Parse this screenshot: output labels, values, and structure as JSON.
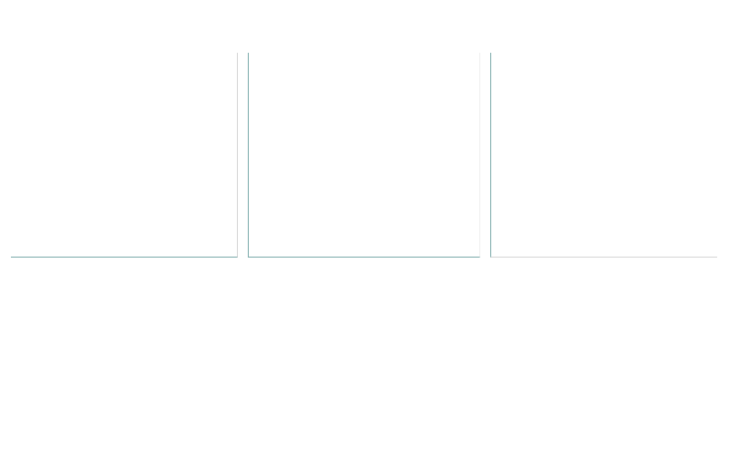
{
  "colors": {
    "background": "#ffffff",
    "panel_axis_line": "#79a9a9",
    "panel_divider": "#d4d4d4",
    "panel_divider_light": "#eeeeee"
  },
  "panels": [
    {
      "label": ""
    },
    {
      "label": ""
    },
    {
      "label": ""
    }
  ]
}
